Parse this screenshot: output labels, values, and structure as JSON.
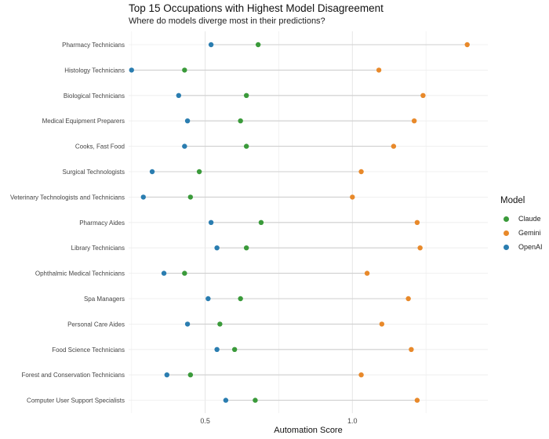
{
  "chart_data": {
    "type": "scatter",
    "title": "Top 15 Occupations with Highest Model Disagreement",
    "subtitle": "Where do models diverge most in their predictions?",
    "xlabel": "Automation Score",
    "ylabel": "",
    "x_ticks": [
      "0.5",
      "1.0"
    ],
    "xlim": [
      0.24,
      1.46
    ],
    "grid": true,
    "legend_title": "Model",
    "legend_placement": "right",
    "categories": [
      "Pharmacy Technicians",
      "Histology Technicians",
      "Biological Technicians",
      "Medical Equipment Preparers",
      "Cooks, Fast Food",
      "Surgical Technologists",
      "Veterinary Technologists and Technicians",
      "Pharmacy Aides",
      "Library Technicians",
      "Ophthalmic Medical Technicians",
      "Spa Managers",
      "Personal Care Aides",
      "Food Science Technicians",
      "Forest and Conservation Technicians",
      "Computer User Support Specialists"
    ],
    "series": [
      {
        "name": "Claude",
        "color": "#3a9a3a",
        "values": [
          0.68,
          0.43,
          0.64,
          0.62,
          0.64,
          0.48,
          0.45,
          0.69,
          0.64,
          0.43,
          0.62,
          0.55,
          0.6,
          0.45,
          0.67
        ]
      },
      {
        "name": "Gemini",
        "color": "#e8892a",
        "values": [
          1.39,
          1.09,
          1.24,
          1.21,
          1.14,
          1.03,
          1.0,
          1.22,
          1.23,
          1.05,
          1.19,
          1.1,
          1.2,
          1.03,
          1.22
        ]
      },
      {
        "name": "OpenAI",
        "color": "#2a7db0",
        "values": [
          0.52,
          0.25,
          0.41,
          0.44,
          0.43,
          0.32,
          0.29,
          0.52,
          0.54,
          0.36,
          0.51,
          0.44,
          0.54,
          0.37,
          0.57
        ]
      }
    ]
  }
}
